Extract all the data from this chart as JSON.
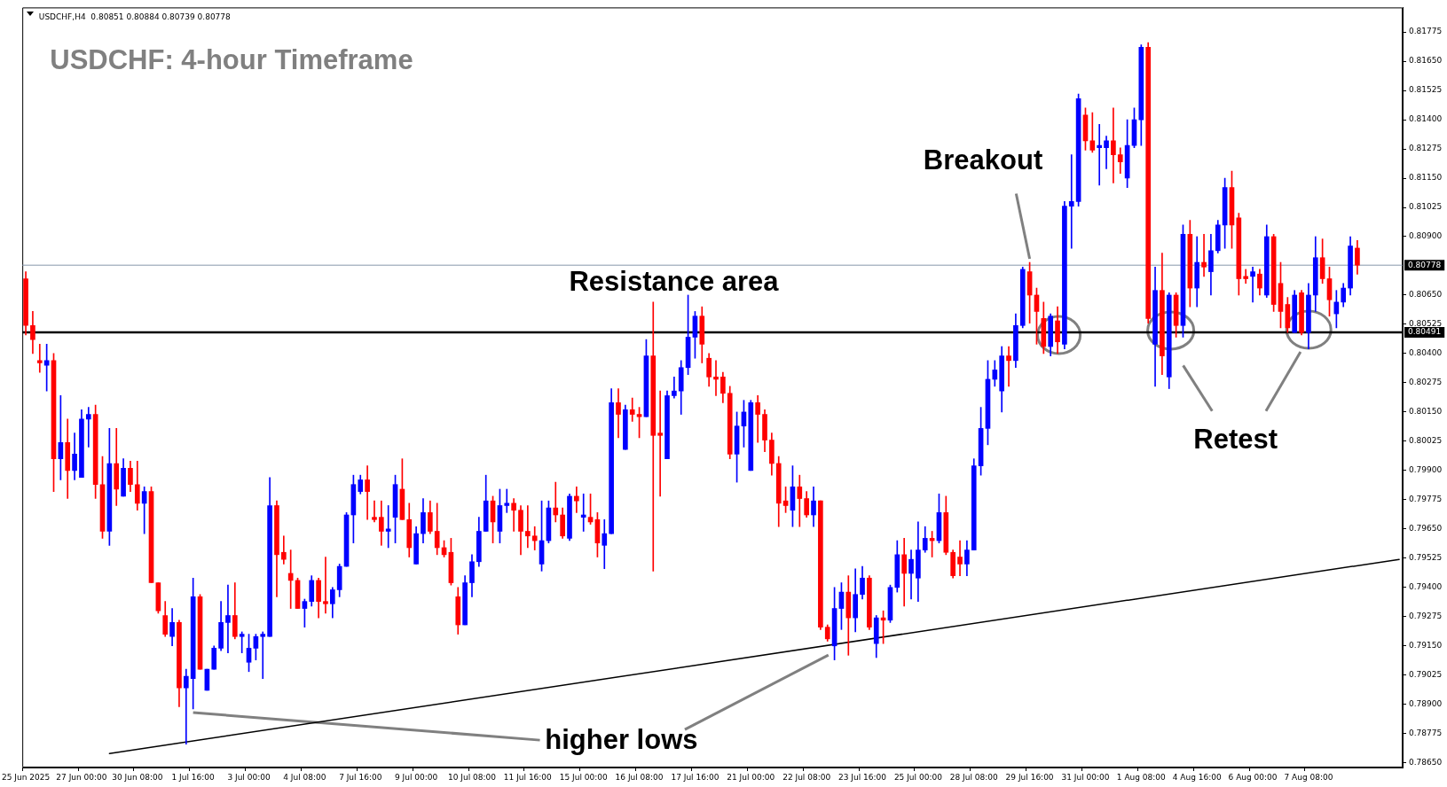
{
  "chart_data": {
    "type": "candlestick",
    "title": "USDCHF: 4-hour Timeframe",
    "annotations": [
      "USDCHF,H4  0.80851 0.80884 0.80739 0.80778",
      "Resistance area",
      {
        "text": "Breakout",
        "x": "29 Jul 16:00",
        "y": 0.8079
      },
      "Retest",
      {
        "text": "higher lows",
        "x": "1 Jul 16:00",
        "y": 0.7888
      }
    ],
    "categories": [
      "25 Jun 2025",
      null,
      null,
      null,
      null,
      null,
      null,
      null,
      "27 Jun 00:00",
      null,
      null,
      null,
      null,
      null,
      null,
      null,
      "30 Jun 08:00",
      null,
      null,
      null,
      null,
      null,
      null,
      null,
      "1 Jul 16:00",
      null,
      null,
      null,
      null,
      null,
      null,
      null,
      "3 Jul 00:00",
      null,
      null,
      null,
      null,
      null,
      null,
      null,
      "4 Jul 08:00",
      null,
      null,
      null,
      null,
      null,
      null,
      null,
      "7 Jul 16:00",
      null,
      null,
      null,
      null,
      null,
      null,
      null,
      "9 Jul 00:00",
      null,
      null,
      null,
      null,
      null,
      null,
      null,
      "10 Jul 08:00",
      null,
      null,
      null,
      null,
      null,
      null,
      null,
      "11 Jul 16:00",
      null,
      null,
      null,
      null,
      null,
      null,
      null,
      "15 Jul 00:00",
      null,
      null,
      null,
      null,
      null,
      null,
      null,
      "16 Jul 08:00",
      null,
      null,
      null,
      null,
      null,
      null,
      null,
      "17 Jul 16:00",
      null,
      null,
      null,
      null,
      null,
      null,
      null,
      "21 Jul 00:00",
      null,
      null,
      null,
      null,
      null,
      null,
      null,
      "22 Jul 08:00",
      null,
      null,
      null,
      null,
      null,
      null,
      null,
      "23 Jul 16:00",
      null,
      null,
      null,
      null,
      null,
      null,
      null,
      "25 Jul 00:00",
      null,
      null,
      null,
      null,
      null,
      null,
      null,
      "28 Jul 08:00",
      null,
      null,
      null,
      null,
      null,
      null,
      null,
      "29 Jul 16:00",
      null,
      null,
      null,
      null,
      null,
      null,
      null,
      "31 Jul 00:00",
      null,
      null,
      null,
      null,
      null,
      null,
      null,
      "1 Aug 08:00",
      null,
      null,
      null,
      null,
      null,
      null,
      null,
      "4 Aug 16:00",
      null,
      null,
      null,
      null,
      null,
      null,
      null,
      "6 Aug 00:00",
      null,
      null,
      null,
      null,
      null,
      null,
      null,
      "7 Aug 08:00",
      null,
      null,
      null,
      null,
      null,
      null,
      null,
      null,
      null,
      null,
      null,
      null,
      null
    ],
    "ohlc": [
      [
        0.8072,
        0.8075,
        0.8048,
        0.8052
      ],
      [
        0.8052,
        0.8058,
        0.804,
        0.8046
      ],
      [
        0.8037,
        0.8044,
        0.8032,
        0.8036
      ],
      [
        0.8035,
        0.8044,
        0.8024,
        0.8037
      ],
      [
        0.8037,
        0.804,
        0.7981,
        0.7995
      ],
      [
        0.7995,
        0.8022,
        0.7986,
        0.8002
      ],
      [
        0.8002,
        0.8012,
        0.7978,
        0.799
      ],
      [
        0.799,
        0.8006,
        0.7986,
        0.7997
      ],
      [
        0.7987,
        0.8016,
        0.7987,
        0.8012
      ],
      [
        0.8012,
        0.8017,
        0.8,
        0.8014
      ],
      [
        0.8014,
        0.8018,
        0.7978,
        0.7984
      ],
      [
        0.7984,
        0.7996,
        0.7961,
        0.7964
      ],
      [
        0.7964,
        0.8008,
        0.7958,
        0.7993
      ],
      [
        0.7993,
        0.8008,
        0.7975,
        0.7982
      ],
      [
        0.7979,
        0.7995,
        0.7979,
        0.7991
      ],
      [
        0.7991,
        0.7994,
        0.7981,
        0.7984
      ],
      [
        0.7984,
        0.7994,
        0.7973,
        0.7976
      ],
      [
        0.7976,
        0.7983,
        0.7963,
        0.7981
      ],
      [
        0.7981,
        0.7983,
        0.7942,
        0.7942
      ],
      [
        0.7942,
        0.7942,
        0.7929,
        0.793
      ],
      [
        0.7928,
        0.7934,
        0.7919,
        0.792
      ],
      [
        0.7919,
        0.7931,
        0.7915,
        0.7925
      ],
      [
        0.7925,
        0.7926,
        0.7889,
        0.7897
      ],
      [
        0.7897,
        0.7905,
        0.7873,
        0.7902
      ],
      [
        0.7901,
        0.7944,
        0.7888,
        0.7936
      ],
      [
        0.7936,
        0.7937,
        0.7905,
        0.7905
      ],
      [
        0.7896,
        0.7905,
        0.7896,
        0.7905
      ],
      [
        0.7905,
        0.7915,
        0.7905,
        0.7914
      ],
      [
        0.7914,
        0.7934,
        0.7913,
        0.7925
      ],
      [
        0.7925,
        0.7941,
        0.7912,
        0.7928
      ],
      [
        0.7928,
        0.7942,
        0.7918,
        0.7919
      ],
      [
        0.7919,
        0.7921,
        0.7912,
        0.792
      ],
      [
        0.7908,
        0.792,
        0.7904,
        0.7914
      ],
      [
        0.7914,
        0.792,
        0.7909,
        0.7919
      ],
      [
        0.7919,
        0.7921,
        0.7901,
        0.792
      ],
      [
        0.7919,
        0.7987,
        0.7919,
        0.7975
      ],
      [
        0.7975,
        0.7977,
        0.7936,
        0.7954
      ],
      [
        0.7955,
        0.7962,
        0.795,
        0.7952
      ],
      [
        0.7946,
        0.7956,
        0.7931,
        0.7943
      ],
      [
        0.7943,
        0.7944,
        0.7931,
        0.7931
      ],
      [
        0.7931,
        0.7935,
        0.7923,
        0.7934
      ],
      [
        0.7934,
        0.7945,
        0.7932,
        0.7943
      ],
      [
        0.7943,
        0.7944,
        0.7927,
        0.7934
      ],
      [
        0.7934,
        0.7953,
        0.7929,
        0.7933
      ],
      [
        0.7933,
        0.794,
        0.7927,
        0.7939
      ],
      [
        0.7939,
        0.795,
        0.7936,
        0.7949
      ],
      [
        0.7949,
        0.7972,
        0.7949,
        0.7971
      ],
      [
        0.7971,
        0.7988,
        0.7959,
        0.7984
      ],
      [
        0.7981,
        0.7988,
        0.798,
        0.7986
      ],
      [
        0.7986,
        0.7992,
        0.7969,
        0.7981
      ],
      [
        0.797,
        0.7977,
        0.7968,
        0.7969
      ],
      [
        0.797,
        0.7977,
        0.7958,
        0.7964
      ],
      [
        0.7964,
        0.7975,
        0.7957,
        0.7965
      ],
      [
        0.797,
        0.7988,
        0.7959,
        0.7984
      ],
      [
        0.7982,
        0.7995,
        0.7969,
        0.7969
      ],
      [
        0.7969,
        0.7976,
        0.7953,
        0.7957
      ],
      [
        0.795,
        0.7966,
        0.795,
        0.7963
      ],
      [
        0.7963,
        0.7978,
        0.7959,
        0.7972
      ],
      [
        0.7972,
        0.7977,
        0.7963,
        0.7964
      ],
      [
        0.7964,
        0.7976,
        0.7954,
        0.7957
      ],
      [
        0.7957,
        0.796,
        0.7953,
        0.7954
      ],
      [
        0.7955,
        0.7961,
        0.7941,
        0.7942
      ],
      [
        0.7936,
        0.794,
        0.792,
        0.7924
      ],
      [
        0.7924,
        0.7945,
        0.7924,
        0.7942
      ],
      [
        0.7942,
        0.7954,
        0.7936,
        0.7951
      ],
      [
        0.7951,
        0.797,
        0.7949,
        0.7964
      ],
      [
        0.7964,
        0.7988,
        0.7964,
        0.7977
      ],
      [
        0.7977,
        0.7979,
        0.7959,
        0.7968
      ],
      [
        0.7964,
        0.7982,
        0.7959,
        0.7975
      ],
      [
        0.7975,
        0.7982,
        0.7972,
        0.7976
      ],
      [
        0.7976,
        0.7978,
        0.7964,
        0.7973
      ],
      [
        0.7973,
        0.7975,
        0.7954,
        0.7964
      ],
      [
        0.7964,
        0.7975,
        0.7957,
        0.7962
      ],
      [
        0.7962,
        0.7966,
        0.7956,
        0.796
      ],
      [
        0.795,
        0.7977,
        0.7947,
        0.796
      ],
      [
        0.796,
        0.7977,
        0.7959,
        0.7974
      ],
      [
        0.7974,
        0.7985,
        0.7968,
        0.7971
      ],
      [
        0.7971,
        0.7974,
        0.7961,
        0.7962
      ],
      [
        0.7961,
        0.798,
        0.796,
        0.7979
      ],
      [
        0.7979,
        0.7983,
        0.7972,
        0.7977
      ],
      [
        0.797,
        0.798,
        0.7964,
        0.7971
      ],
      [
        0.797,
        0.798,
        0.7967,
        0.7968
      ],
      [
        0.7969,
        0.7972,
        0.7953,
        0.7959
      ],
      [
        0.7958,
        0.7969,
        0.7948,
        0.7963
      ],
      [
        0.7963,
        0.8025,
        0.7963,
        0.8019
      ],
      [
        0.8019,
        0.8025,
        0.8004,
        0.8014
      ],
      [
        0.7999,
        0.8018,
        0.7999,
        0.8016
      ],
      [
        0.8016,
        0.8021,
        0.8011,
        0.8014
      ],
      [
        0.8014,
        0.8017,
        0.8004,
        0.8013
      ],
      [
        0.8013,
        0.8046,
        0.8013,
        0.8039
      ],
      [
        0.8039,
        0.8062,
        0.7947,
        0.8005
      ],
      [
        0.8006,
        0.8024,
        0.7979,
        0.8005
      ],
      [
        0.7995,
        0.8024,
        0.7995,
        0.8022
      ],
      [
        0.8022,
        0.803,
        0.8021,
        0.8024
      ],
      [
        0.8024,
        0.8037,
        0.8014,
        0.8034
      ],
      [
        0.8034,
        0.8065,
        0.8031,
        0.8047
      ],
      [
        0.8047,
        0.8058,
        0.8038,
        0.8056
      ],
      [
        0.8056,
        0.806,
        0.8036,
        0.8044
      ],
      [
        0.8038,
        0.804,
        0.8026,
        0.803
      ],
      [
        0.803,
        0.8037,
        0.8022,
        0.8029
      ],
      [
        0.803,
        0.8032,
        0.8019,
        0.8023
      ],
      [
        0.8023,
        0.8026,
        0.7995,
        0.7997
      ],
      [
        0.7997,
        0.8015,
        0.7985,
        0.8009
      ],
      [
        0.8009,
        0.802,
        0.8,
        0.8015
      ],
      [
        0.799,
        0.802,
        0.799,
        0.8019
      ],
      [
        0.8019,
        0.8022,
        0.8002,
        0.8014
      ],
      [
        0.8014,
        0.8016,
        0.7998,
        0.8003
      ],
      [
        0.8003,
        0.8006,
        0.7988,
        0.7993
      ],
      [
        0.7993,
        0.7996,
        0.7966,
        0.7976
      ],
      [
        0.7977,
        0.7983,
        0.7972,
        0.7975
      ],
      [
        0.7973,
        0.7992,
        0.7966,
        0.7983
      ],
      [
        0.7983,
        0.7988,
        0.7966,
        0.7978
      ],
      [
        0.7978,
        0.7981,
        0.797,
        0.7971
      ],
      [
        0.7971,
        0.7983,
        0.7966,
        0.7977
      ],
      [
        0.7977,
        0.7977,
        0.7922,
        0.7923
      ],
      [
        0.7923,
        0.7924,
        0.7917,
        0.7918
      ],
      [
        0.7915,
        0.794,
        0.7909,
        0.7931
      ],
      [
        0.7931,
        0.7942,
        0.7922,
        0.7938
      ],
      [
        0.7938,
        0.7945,
        0.7911,
        0.7927
      ],
      [
        0.7927,
        0.7948,
        0.7921,
        0.7937
      ],
      [
        0.7937,
        0.7949,
        0.7935,
        0.7944
      ],
      [
        0.7944,
        0.7945,
        0.7922,
        0.7923
      ],
      [
        0.7916,
        0.7928,
        0.791,
        0.7927
      ],
      [
        0.7927,
        0.793,
        0.7916,
        0.7926
      ],
      [
        0.7926,
        0.7941,
        0.7925,
        0.794
      ],
      [
        0.794,
        0.796,
        0.7938,
        0.7954
      ],
      [
        0.7954,
        0.7961,
        0.7932,
        0.7946
      ],
      [
        0.7946,
        0.7956,
        0.7935,
        0.7952
      ],
      [
        0.7944,
        0.7968,
        0.7934,
        0.7956
      ],
      [
        0.7956,
        0.7966,
        0.7955,
        0.7961
      ],
      [
        0.7961,
        0.7964,
        0.7953,
        0.796
      ],
      [
        0.796,
        0.798,
        0.7959,
        0.7972
      ],
      [
        0.7972,
        0.7979,
        0.7954,
        0.7955
      ],
      [
        0.7955,
        0.7956,
        0.7944,
        0.7945
      ],
      [
        0.7953,
        0.796,
        0.7945,
        0.795
      ],
      [
        0.795,
        0.796,
        0.7945,
        0.7956
      ],
      [
        0.7956,
        0.7995,
        0.7956,
        0.7992
      ],
      [
        0.7992,
        0.8017,
        0.7988,
        0.8008
      ],
      [
        0.8008,
        0.8037,
        0.8001,
        0.8029
      ],
      [
        0.8029,
        0.8037,
        0.8026,
        0.8033
      ],
      [
        0.8024,
        0.8043,
        0.8015,
        0.8039
      ],
      [
        0.8039,
        0.8043,
        0.8026,
        0.8037
      ],
      [
        0.8037,
        0.8057,
        0.8034,
        0.8052
      ],
      [
        0.8052,
        0.8077,
        0.8051,
        0.8076
      ],
      [
        0.8075,
        0.8079,
        0.8053,
        0.8065
      ],
      [
        0.8065,
        0.8068,
        0.8044,
        0.8058
      ],
      [
        0.8055,
        0.8062,
        0.804,
        0.8043
      ],
      [
        0.8043,
        0.8057,
        0.8039,
        0.8056
      ],
      [
        0.8054,
        0.806,
        0.804,
        0.8045
      ],
      [
        0.8044,
        0.8105,
        0.8042,
        0.8103
      ],
      [
        0.8103,
        0.8125,
        0.8085,
        0.8105
      ],
      [
        0.8105,
        0.8151,
        0.8103,
        0.8149
      ],
      [
        0.8142,
        0.8145,
        0.8127,
        0.8131
      ],
      [
        0.8131,
        0.8143,
        0.8126,
        0.8127
      ],
      [
        0.8128,
        0.8138,
        0.8112,
        0.8129
      ],
      [
        0.8128,
        0.8133,
        0.8119,
        0.8131
      ],
      [
        0.8131,
        0.8145,
        0.8113,
        0.8125
      ],
      [
        0.8125,
        0.8128,
        0.8117,
        0.8122
      ],
      [
        0.8115,
        0.814,
        0.8111,
        0.8129
      ],
      [
        0.8129,
        0.8145,
        0.8128,
        0.814
      ],
      [
        0.814,
        0.8172,
        0.8129,
        0.8171
      ],
      [
        0.8171,
        0.8173,
        0.8053,
        0.8055
      ],
      [
        0.8044,
        0.8077,
        0.8026,
        0.8067
      ],
      [
        0.8067,
        0.8083,
        0.8031,
        0.8039
      ],
      [
        0.803,
        0.8066,
        0.8025,
        0.8065
      ],
      [
        0.8065,
        0.8066,
        0.8047,
        0.8052
      ],
      [
        0.8052,
        0.8095,
        0.8047,
        0.8091
      ],
      [
        0.8091,
        0.8097,
        0.806,
        0.8068
      ],
      [
        0.8068,
        0.809,
        0.806,
        0.8079
      ],
      [
        0.8079,
        0.8091,
        0.8073,
        0.8077
      ],
      [
        0.8075,
        0.8091,
        0.8065,
        0.8084
      ],
      [
        0.8084,
        0.8097,
        0.8083,
        0.8095
      ],
      [
        0.8095,
        0.8115,
        0.8085,
        0.8111
      ],
      [
        0.8111,
        0.8118,
        0.8085,
        0.8095
      ],
      [
        0.8098,
        0.81,
        0.8065,
        0.8072
      ],
      [
        0.8073,
        0.8076,
        0.807,
        0.8072
      ],
      [
        0.8073,
        0.8077,
        0.8062,
        0.8075
      ],
      [
        0.8074,
        0.8076,
        0.8065,
        0.8068
      ],
      [
        0.8065,
        0.8095,
        0.8064,
        0.809
      ],
      [
        0.809,
        0.8091,
        0.8058,
        0.8061
      ],
      [
        0.807,
        0.8079,
        0.8051,
        0.8058
      ],
      [
        0.8061,
        0.8064,
        0.8049,
        0.8051
      ],
      [
        0.8049,
        0.8067,
        0.8049,
        0.8065
      ],
      [
        0.8066,
        0.8067,
        0.8048,
        0.8049
      ],
      [
        0.8049,
        0.807,
        0.8042,
        0.8065
      ],
      [
        0.8065,
        0.809,
        0.8058,
        0.8081
      ],
      [
        0.8081,
        0.8089,
        0.807,
        0.8072
      ],
      [
        0.8072,
        0.8077,
        0.8056,
        0.8063
      ],
      [
        0.8057,
        0.8067,
        0.8051,
        0.8062
      ],
      [
        0.8062,
        0.807,
        0.806,
        0.8068
      ],
      [
        0.8068,
        0.809,
        0.8065,
        0.8086
      ],
      [
        0.80851,
        0.80884,
        0.80739,
        0.80778
      ],
      null,
      null,
      null,
      null,
      null,
      null
    ],
    "colors": [
      "#ff0000",
      "#ff0000",
      "#ff0000",
      "#0000ff",
      "#ff0000",
      "#0000ff",
      "#ff0000",
      "#0000ff",
      "#0000ff",
      "#0000ff",
      "#ff0000",
      "#ff0000",
      "#0000ff",
      "#ff0000",
      "#0000ff",
      "#ff0000",
      "#ff0000",
      "#0000ff",
      "#ff0000",
      "#ff0000",
      "#ff0000",
      "#0000ff",
      "#ff0000",
      "#0000ff",
      "#0000ff",
      "#ff0000",
      "#0000ff",
      "#0000ff",
      "#0000ff",
      "#0000ff",
      "#ff0000",
      "#0000ff",
      "#0000ff",
      "#0000ff",
      "#0000ff",
      "#0000ff",
      "#ff0000",
      "#ff0000",
      "#ff0000",
      "#ff0000",
      "#0000ff",
      "#0000ff",
      "#ff0000",
      "#ff0000",
      "#0000ff",
      "#0000ff",
      "#0000ff",
      "#0000ff",
      "#0000ff",
      "#ff0000",
      "#ff0000",
      "#ff0000",
      "#0000ff",
      "#0000ff",
      "#ff0000",
      "#ff0000",
      "#0000ff",
      "#0000ff",
      "#ff0000",
      "#ff0000",
      "#ff0000",
      "#ff0000",
      "#ff0000",
      "#0000ff",
      "#0000ff",
      "#0000ff",
      "#0000ff",
      "#ff0000",
      "#0000ff",
      "#0000ff",
      "#ff0000",
      "#ff0000",
      "#ff0000",
      "#ff0000",
      "#0000ff",
      "#0000ff",
      "#ff0000",
      "#ff0000",
      "#0000ff",
      "#ff0000",
      "#0000ff",
      "#ff0000",
      "#ff0000",
      "#0000ff",
      "#0000ff",
      "#ff0000",
      "#0000ff",
      "#ff0000",
      "#ff0000",
      "#0000ff",
      "#ff0000",
      "#ff0000",
      "#0000ff",
      "#0000ff",
      "#0000ff",
      "#0000ff",
      "#0000ff",
      "#ff0000",
      "#ff0000",
      "#ff0000",
      "#ff0000",
      "#ff0000",
      "#0000ff",
      "#0000ff",
      "#0000ff",
      "#ff0000",
      "#ff0000",
      "#ff0000",
      "#ff0000",
      "#ff0000",
      "#0000ff",
      "#ff0000",
      "#ff0000",
      "#0000ff",
      "#ff0000",
      "#ff0000",
      "#0000ff",
      "#0000ff",
      "#ff0000",
      "#0000ff",
      "#0000ff",
      "#ff0000",
      "#0000ff",
      "#ff0000",
      "#0000ff",
      "#0000ff",
      "#ff0000",
      "#0000ff",
      "#0000ff",
      "#0000ff",
      "#ff0000",
      "#0000ff",
      "#ff0000",
      "#ff0000",
      "#ff0000",
      "#0000ff",
      "#0000ff",
      "#0000ff",
      "#0000ff",
      "#0000ff",
      "#0000ff",
      "#ff0000",
      "#0000ff",
      "#0000ff",
      "#ff0000",
      "#ff0000",
      "#ff0000",
      "#0000ff",
      "#ff0000",
      "#0000ff",
      "#0000ff",
      "#0000ff",
      "#ff0000",
      "#ff0000",
      "#0000ff",
      "#0000ff",
      "#ff0000",
      "#ff0000",
      "#0000ff",
      "#0000ff",
      "#0000ff",
      "#ff0000",
      "#0000ff",
      "#ff0000",
      "#0000ff",
      "#ff0000",
      "#0000ff",
      "#ff0000",
      "#0000ff",
      "#ff0000",
      "#0000ff",
      "#0000ff",
      "#0000ff",
      "#ff0000",
      "#ff0000",
      "#ff0000",
      "#0000ff",
      "#ff0000",
      "#0000ff",
      "#ff0000",
      "#ff0000",
      "#ff0000",
      "#0000ff",
      "#ff0000",
      "#0000ff",
      "#0000ff",
      "#ff0000",
      "#ff0000",
      "#0000ff",
      "#0000ff",
      "#0000ff",
      "#ff0000",
      null,
      null,
      null,
      null,
      null,
      null
    ],
    "series": [
      {
        "type": "line",
        "color": "#000000",
        "values": [
          null,
          null,
          null,
          null,
          null,
          null,
          null,
          null,
          null,
          null,
          null,
          null,
          0.7869,
          null,
          null,
          null,
          null,
          null,
          null,
          null,
          null,
          null,
          null,
          null,
          null,
          null,
          null,
          null,
          null,
          null,
          null,
          null,
          null,
          null,
          null,
          null,
          null,
          null,
          null,
          null,
          null,
          null,
          null,
          null,
          null,
          null,
          null,
          null,
          null,
          null,
          null,
          null,
          null,
          null,
          null,
          null,
          null,
          null,
          null,
          null,
          null,
          null,
          null,
          null,
          null,
          null,
          null,
          null,
          null,
          null,
          null,
          null,
          null,
          null,
          null,
          null,
          null,
          null,
          null,
          null,
          null,
          null,
          null,
          null,
          null,
          null,
          null,
          null,
          null,
          null,
          null,
          null,
          null,
          null,
          null,
          null,
          null,
          null,
          null,
          null,
          null,
          null,
          null,
          null,
          null,
          null,
          null,
          null,
          null,
          null,
          null,
          null,
          null,
          null,
          null,
          null,
          null,
          null,
          null,
          null,
          null,
          null,
          null,
          null,
          null,
          null,
          null,
          null,
          null,
          null,
          null,
          null,
          null,
          null,
          null,
          null,
          null,
          null,
          null,
          null,
          null,
          null,
          null,
          null,
          null,
          null,
          null,
          null,
          null,
          null,
          null,
          null,
          null,
          null,
          null,
          null,
          null,
          null,
          null,
          null,
          null,
          null,
          null,
          null,
          null,
          null,
          null,
          null,
          null,
          null,
          null,
          null,
          null,
          null,
          null,
          null,
          null,
          null,
          null,
          null,
          null,
          null,
          null,
          null,
          null,
          null,
          null,
          null,
          null,
          null,
          null,
          null,
          null,
          null,
          null,
          null,
          null,
          0.7952
        ]
      }
    ],
    "ylim": [
      0.7863,
      0.8188
    ],
    "yticks": [
      0.81775,
      {
        "value": 0.8165,
        "label": "0.81650"
      },
      0.81525,
      {
        "value": 0.814,
        "label": "0.81400"
      },
      0.81275,
      {
        "value": 0.8115,
        "label": "0.81150"
      },
      0.81025,
      {
        "value": 0.809,
        "label": "0.80900"
      },
      {
        "value": 0.8065,
        "label": "0.80650"
      },
      0.80525,
      {
        "value": 0.804,
        "label": "0.80400"
      },
      0.80275,
      {
        "value": 0.8015,
        "label": "0.80150"
      },
      0.80025,
      {
        "value": 0.799,
        "label": "0.79900"
      },
      0.79775,
      {
        "value": 0.7965,
        "label": "0.79650"
      },
      0.79525,
      {
        "value": 0.794,
        "label": "0.79400"
      },
      0.79275,
      {
        "value": 0.7915,
        "label": "0.79150"
      },
      0.79025,
      {
        "value": 0.789,
        "label": "0.78900"
      },
      0.78775,
      {
        "value": 0.7865,
        "label": "0.78650"
      }
    ],
    "ref_lines": [
      {
        "axis": "y",
        "value": 0.80491,
        "label": "0.80491",
        "color": "#000000"
      },
      {
        "axis": "y",
        "value": 0.80778,
        "label": "0.80778",
        "color": "#8797ab"
      }
    ],
    "grid": false
  }
}
